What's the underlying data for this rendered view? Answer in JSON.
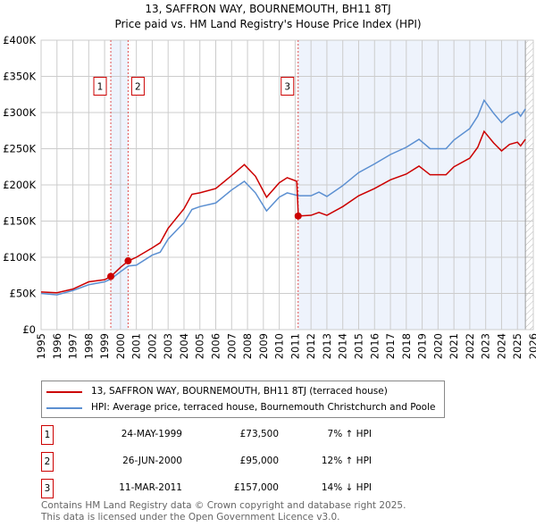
{
  "title": "13, SAFFRON WAY, BOURNEMOUTH, BH11 8TJ",
  "subtitle": "Price paid vs. HM Land Registry's House Price Index (HPI)",
  "colors": {
    "property": "#cc0000",
    "hpi": "#5b8fd1",
    "shade": "#eef3fc"
  },
  "chart_data": {
    "type": "line",
    "title": "13, SAFFRON WAY, BOURNEMOUTH, BH11 8TJ",
    "xlim": [
      1995,
      2026
    ],
    "ylim": [
      0,
      400000
    ],
    "yticks": [
      0,
      50000,
      100000,
      150000,
      200000,
      250000,
      300000,
      350000,
      400000
    ],
    "ytick_labels": [
      "£0",
      "£50K",
      "£100K",
      "£150K",
      "£200K",
      "£250K",
      "£300K",
      "£350K",
      "£400K"
    ],
    "xticks": [
      1995,
      1996,
      1997,
      1998,
      1999,
      2000,
      2001,
      2002,
      2003,
      2004,
      2005,
      2006,
      2007,
      2008,
      2009,
      2010,
      2011,
      2012,
      2013,
      2014,
      2015,
      2016,
      2017,
      2018,
      2019,
      2020,
      2021,
      2022,
      2023,
      2024,
      2025,
      2026
    ],
    "grid": true,
    "series": [
      {
        "name": "13, SAFFRON WAY, BOURNEMOUTH, BH11 8TJ (terraced house)",
        "color": "#cc0000",
        "points": [
          [
            1995,
            52000
          ],
          [
            1996,
            51000
          ],
          [
            1997,
            56000
          ],
          [
            1998,
            66000
          ],
          [
            1999,
            69000
          ],
          [
            1999.4,
            73500
          ],
          [
            2000,
            86000
          ],
          [
            2000.5,
            95000
          ],
          [
            2001,
            100000
          ],
          [
            2002,
            113000
          ],
          [
            2002.5,
            120000
          ],
          [
            2003,
            140000
          ],
          [
            2004,
            167000
          ],
          [
            2004.5,
            187000
          ],
          [
            2005,
            189000
          ],
          [
            2006,
            195000
          ],
          [
            2007,
            213000
          ],
          [
            2007.8,
            228000
          ],
          [
            2008.5,
            212000
          ],
          [
            2009.2,
            183000
          ],
          [
            2010,
            203000
          ],
          [
            2010.5,
            210000
          ],
          [
            2011.1,
            205000
          ],
          [
            2011.2,
            157000
          ],
          [
            2012,
            158000
          ],
          [
            2012.5,
            162000
          ],
          [
            2013,
            158000
          ],
          [
            2014,
            170000
          ],
          [
            2015,
            185000
          ],
          [
            2016,
            195000
          ],
          [
            2017,
            207000
          ],
          [
            2018,
            215000
          ],
          [
            2018.8,
            226000
          ],
          [
            2019.5,
            214000
          ],
          [
            2020.5,
            214000
          ],
          [
            2021,
            225000
          ],
          [
            2022,
            237000
          ],
          [
            2022.5,
            252000
          ],
          [
            2022.9,
            274000
          ],
          [
            2023.5,
            258000
          ],
          [
            2024,
            247000
          ],
          [
            2024.5,
            256000
          ],
          [
            2025,
            259000
          ],
          [
            2025.2,
            254000
          ],
          [
            2025.5,
            263000
          ]
        ]
      },
      {
        "name": "HPI: Average price, terraced house, Bournemouth Christchurch and Poole",
        "color": "#5b8fd1",
        "points": [
          [
            1995,
            50000
          ],
          [
            1996,
            48000
          ],
          [
            1997,
            54000
          ],
          [
            1998,
            62000
          ],
          [
            1999,
            66000
          ],
          [
            1999.4,
            70000
          ],
          [
            2000,
            80000
          ],
          [
            2000.5,
            88000
          ],
          [
            2001,
            89000
          ],
          [
            2002,
            103000
          ],
          [
            2002.5,
            107000
          ],
          [
            2003,
            125000
          ],
          [
            2004,
            148000
          ],
          [
            2004.5,
            166000
          ],
          [
            2005,
            170000
          ],
          [
            2006,
            175000
          ],
          [
            2007,
            193000
          ],
          [
            2007.8,
            205000
          ],
          [
            2008.5,
            189000
          ],
          [
            2009.2,
            164000
          ],
          [
            2010,
            183000
          ],
          [
            2010.5,
            189000
          ],
          [
            2011.2,
            185000
          ],
          [
            2012,
            185000
          ],
          [
            2012.5,
            190000
          ],
          [
            2013,
            184000
          ],
          [
            2014,
            199000
          ],
          [
            2015,
            217000
          ],
          [
            2016,
            229000
          ],
          [
            2017,
            242000
          ],
          [
            2018,
            252000
          ],
          [
            2018.8,
            263000
          ],
          [
            2019.5,
            250000
          ],
          [
            2020.5,
            250000
          ],
          [
            2021,
            262000
          ],
          [
            2022,
            278000
          ],
          [
            2022.5,
            295000
          ],
          [
            2022.9,
            317000
          ],
          [
            2023.5,
            299000
          ],
          [
            2024,
            286000
          ],
          [
            2024.5,
            296000
          ],
          [
            2025,
            301000
          ],
          [
            2025.2,
            295000
          ],
          [
            2025.5,
            305000
          ]
        ]
      }
    ],
    "sales": [
      {
        "label": "1",
        "x": 1999.39,
        "y": 73500
      },
      {
        "label": "2",
        "x": 2000.48,
        "y": 95000
      },
      {
        "label": "3",
        "x": 2011.19,
        "y": 157000
      }
    ],
    "shaded_ranges": [
      [
        1999.39,
        2000.48
      ],
      [
        2011.19,
        2025.5
      ]
    ],
    "forecast_from": 2025.5
  },
  "legend": {
    "property": "13, SAFFRON WAY, BOURNEMOUTH, BH11 8TJ (terraced house)",
    "hpi": "HPI: Average price, terraced house, Bournemouth Christchurch and Poole"
  },
  "transactions": [
    {
      "num": "1",
      "date": "24-MAY-1999",
      "price": "£73,500",
      "hpi": "7% ↑ HPI"
    },
    {
      "num": "2",
      "date": "26-JUN-2000",
      "price": "£95,000",
      "hpi": "12% ↑ HPI"
    },
    {
      "num": "3",
      "date": "11-MAR-2011",
      "price": "£157,000",
      "hpi": "14% ↓ HPI"
    }
  ],
  "footer": {
    "line1": "Contains HM Land Registry data © Crown copyright and database right 2025.",
    "line2": "This data is licensed under the Open Government Licence v3.0."
  }
}
